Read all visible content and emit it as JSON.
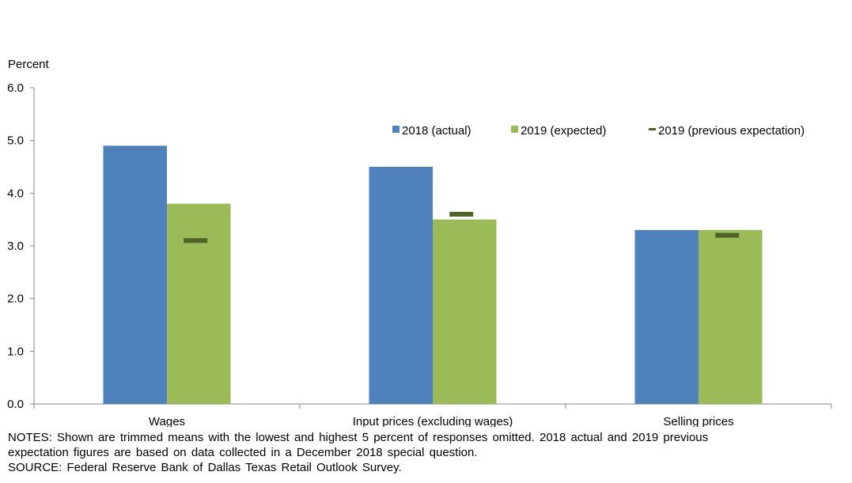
{
  "chart_data": {
    "type": "bar",
    "ylabel": "Percent",
    "ylim": [
      0,
      6
    ],
    "yticks": [
      "0.0",
      "1.0",
      "2.0",
      "3.0",
      "4.0",
      "5.0",
      "6.0"
    ],
    "categories": [
      "Wages",
      "Input prices (excluding wages)",
      "Selling prices"
    ],
    "series": [
      {
        "name": "2018 (actual)",
        "type": "bar",
        "color": "#4F81BD",
        "values": [
          4.9,
          4.5,
          3.3
        ]
      },
      {
        "name": "2019 (expected)",
        "type": "bar",
        "color": "#9BBB59",
        "values": [
          3.8,
          3.5,
          3.3
        ]
      },
      {
        "name": "2019 (previous expectation)",
        "type": "marker",
        "color": "#4F6228",
        "values": [
          3.1,
          3.6,
          3.2
        ]
      }
    ],
    "legend_position": "top-right",
    "grid": false
  },
  "notes": {
    "line1": "NOTES: Shown are trimmed means with the lowest and highest 5 percent of responses omitted. 2018 actual and 2019 previous",
    "line2": "expectation figures are based on data collected in a December 2018 special question.",
    "source": "SOURCE: Federal Reserve Bank of Dallas Texas Retail Outlook Survey."
  }
}
